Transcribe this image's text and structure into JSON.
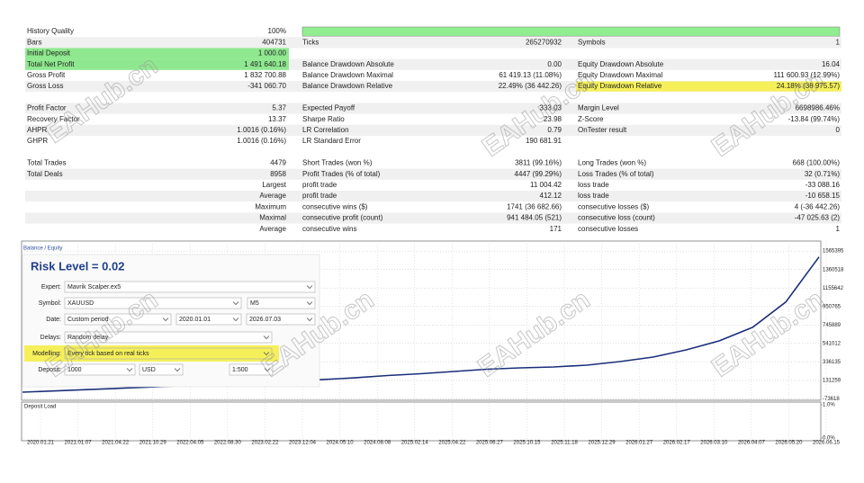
{
  "report": {
    "rows": [
      [
        "History Quality",
        "100%",
        null,
        null,
        null,
        null
      ],
      [
        "Bars",
        "404731",
        "Ticks",
        "265270932",
        "Symbols",
        "1"
      ],
      [
        "Initial Deposit",
        "1 000.00",
        null,
        null,
        null,
        null
      ],
      [
        "Total Net Profit",
        "1 491 640.18",
        "Balance Drawdown Absolute",
        "0.00",
        "Equity Drawdown Absolute",
        "16.04"
      ],
      [
        "Gross Profit",
        "1 832 700.88",
        "Balance Drawdown Maximal",
        "61 419.13 (11.08%)",
        "Equity Drawdown Maximal",
        "111 600.93 (12.99%)"
      ],
      [
        "Gross Loss",
        "-341 060.70",
        "Balance Drawdown Relative",
        "22.49% (36 442.26)",
        "Equity Drawdown Relative",
        "24.18% (38 975.57)"
      ],
      null,
      [
        "Profit Factor",
        "5.37",
        "Expected Payoff",
        "333.03",
        "Margin Level",
        "6698986.46%"
      ],
      [
        "Recovery Factor",
        "13.37",
        "Sharpe Ratio",
        "23.98",
        "Z-Score",
        "-13.84 (99.74%)"
      ],
      [
        "AHPR",
        "1.0016 (0.16%)",
        "LR Correlation",
        "0.79",
        "OnTester result",
        "0"
      ],
      [
        "GHPR",
        "1.0016 (0.16%)",
        "LR Standard Error",
        "190 681.91",
        null,
        null
      ],
      null,
      [
        "Total Trades",
        "4479",
        "Short Trades (won %)",
        "3811 (99.16%)",
        "Long Trades (won %)",
        "668 (100.00%)"
      ],
      [
        "Total Deals",
        "8958",
        "Profit Trades (% of total)",
        "4447 (99.29%)",
        "Loss Trades (% of total)",
        "32 (0.71%)"
      ],
      [
        null,
        "Largest",
        "profit trade",
        "11 004.42",
        "loss trade",
        "-33 088.16"
      ],
      [
        null,
        "Average",
        "profit trade",
        "412.12",
        "loss trade",
        "-10 658.15"
      ],
      [
        null,
        "Maximum",
        "consecutive wins ($)",
        "1741 (36 682.66)",
        "consecutive losses ($)",
        "4 (-36 442.26)"
      ],
      [
        null,
        "Maximal",
        "consecutive profit (count)",
        "941 484.05 (521)",
        "consecutive loss (count)",
        "-47 025.63 (2)"
      ],
      [
        null,
        "Average",
        "consecutive wins",
        "171",
        "consecutive losses",
        "1"
      ]
    ]
  },
  "graph": {
    "legend": "Balance / Equity",
    "ylim": [
      -88760,
      1676400
    ],
    "yticks": [
      1565395,
      1360518,
      1155642,
      950765,
      745889,
      541012,
      336135,
      131259,
      -73618
    ],
    "xticks": [
      "2020.01.21",
      "2021.01.07",
      "2021.04.22",
      "2021.10.29",
      "2022.04.05",
      "2022.08.30",
      "2023.02.22",
      "2023.12.04",
      "2024.05.10",
      "2024.08.08",
      "2025.02.14",
      "2025.04.22",
      "2025.06.27",
      "2025.10.15",
      "2025.11.18",
      "2025.12.29",
      "2026.01.27",
      "2026.02.17",
      "2026.03.10",
      "2026.04.07",
      "2026.05.20",
      "2026.06.15"
    ],
    "balance": [
      1000,
      15000,
      30000,
      45000,
      60000,
      75000,
      90000,
      105000,
      120000,
      140000,
      160000,
      185000,
      205000,
      230000,
      255000,
      270000,
      280000,
      300000,
      340000,
      390000,
      470000,
      570000,
      720000,
      1000000,
      1500000
    ],
    "lower_panel": {
      "title": "Deposit Load",
      "ylim": [
        0,
        1
      ],
      "yticks": [
        {
          "value": 1,
          "label": "1.0%"
        },
        {
          "value": 0,
          "label": "0.0%"
        }
      ]
    }
  },
  "settings": {
    "title": "Risk Level = 0.02",
    "fields": [
      {
        "label": "Expert:",
        "values": [
          "Mavrik Scalper.ex5"
        ]
      },
      {
        "label": "Symbol:",
        "values": [
          "XAUUSD",
          "M5"
        ]
      },
      {
        "label": "Date:",
        "values": [
          "Custom period",
          "2020.01.01",
          "2026.07.03"
        ]
      },
      {
        "label": "Delays:",
        "values": [
          "Random delay"
        ]
      },
      {
        "label": "Modelling:",
        "values": [
          "Every tick based on real ticks"
        ]
      },
      {
        "label": "Deposit:",
        "values": [
          "1000",
          "USD",
          "1:500"
        ]
      }
    ]
  },
  "watermark": "EAHub.cn"
}
